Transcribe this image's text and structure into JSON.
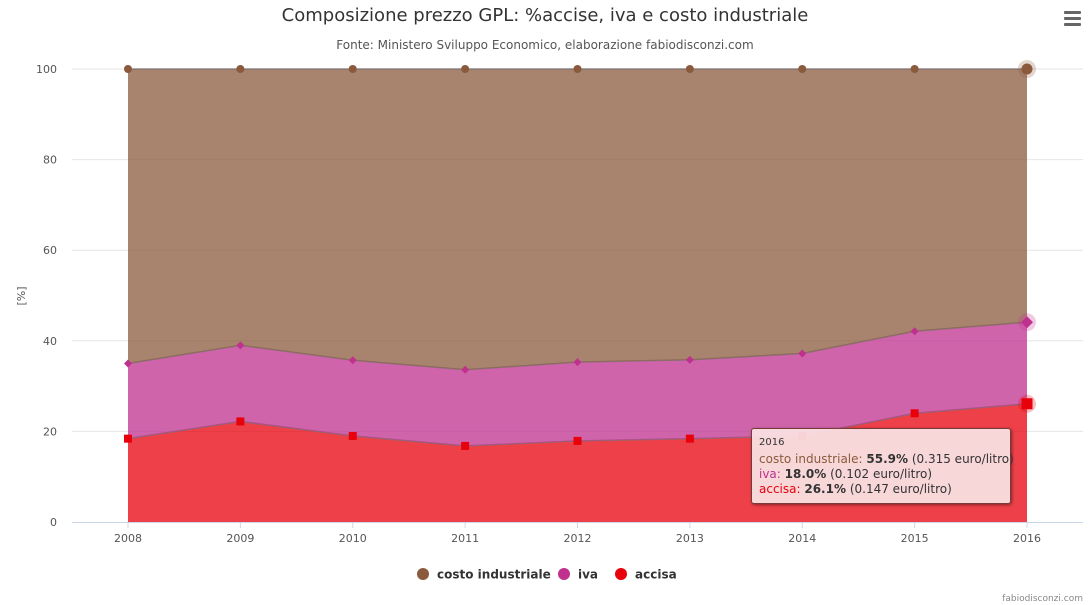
{
  "menu": {
    "icon": "hamburger-menu-icon"
  },
  "credits": "fabiodisconzi.com",
  "chart_data": {
    "type": "area",
    "stacking": "percent",
    "title": "Composizione prezzo GPL: %accise, iva e costo industriale",
    "subtitle": "Fonte: Ministero Sviluppo Economico, elaborazione fabiodisconzi.com",
    "xlabel": "",
    "ylabel": "[%]",
    "ylim": [
      0,
      100
    ],
    "yticks": [
      "0",
      "20",
      "40",
      "60",
      "80",
      "100"
    ],
    "categories": [
      "2008",
      "2009",
      "2010",
      "2011",
      "2012",
      "2013",
      "2014",
      "2015",
      "2016"
    ],
    "grid": true,
    "legend_placement": "bottom-center",
    "series": [
      {
        "name": "costo industriale",
        "color": "#8B5A3C",
        "marker": "circle",
        "values": [
          65.0,
          61.0,
          64.3,
          66.4,
          64.7,
          64.2,
          62.8,
          57.9,
          55.9
        ]
      },
      {
        "name": "iva",
        "color": "#C0308F",
        "marker": "diamond",
        "values": [
          16.6,
          16.8,
          16.7,
          16.8,
          17.4,
          17.4,
          18.2,
          18.1,
          18.0
        ]
      },
      {
        "name": "accisa",
        "color": "#E8000B",
        "marker": "square",
        "values": [
          18.4,
          22.2,
          19.0,
          16.8,
          17.9,
          18.4,
          19.0,
          24.0,
          26.1
        ]
      }
    ],
    "tooltip": {
      "header": "2016",
      "rows": [
        {
          "name": "costo industriale",
          "separator": ": ",
          "pct": "55.9%",
          "detail": " (0.315 euro/litro)",
          "color": "#8B5A3C"
        },
        {
          "name": "iva",
          "separator": ": ",
          "pct": "18.0%",
          "detail": " (0.102 euro/litro)",
          "color": "#C0308F"
        },
        {
          "name": "accisa",
          "separator": ": ",
          "pct": "26.1%",
          "detail": " (0.147 euro/litro)",
          "color": "#E8000B"
        }
      ]
    }
  }
}
